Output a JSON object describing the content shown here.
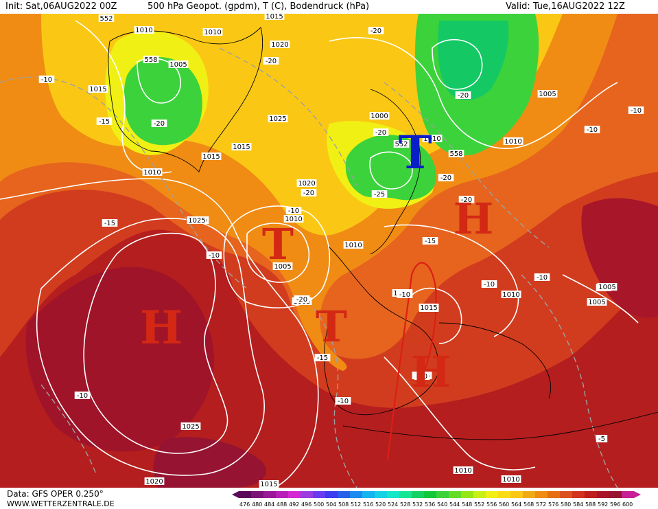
{
  "header": {
    "init": "Init: Sat,06AUG2022 00Z",
    "title": "500 hPa Geopot. (gpdm), T (C), Bodendruck (hPa)",
    "valid": "Valid: Tue,16AUG2022 12Z"
  },
  "footer": {
    "data_source": "Data: GFS OPER 0.250°",
    "website": "WWW.WETTERZENTRALE.DE"
  },
  "legend": {
    "ticks": [
      "476",
      "480",
      "484",
      "488",
      "492",
      "496",
      "500",
      "504",
      "508",
      "512",
      "516",
      "520",
      "524",
      "528",
      "532",
      "536",
      "540",
      "544",
      "548",
      "552",
      "556",
      "560",
      "564",
      "568",
      "572",
      "576",
      "580",
      "584",
      "588",
      "592",
      "596",
      "600"
    ],
    "colors": [
      "#5a0a5a",
      "#7a1278",
      "#9a1898",
      "#b81eb8",
      "#d428d4",
      "#9a3ce0",
      "#6a3cf0",
      "#3c3cf0",
      "#2860e8",
      "#1c8cf0",
      "#14b4f0",
      "#14d2e6",
      "#14e6c8",
      "#14e696",
      "#14d264",
      "#14c83c",
      "#3cd23c",
      "#64dc28",
      "#96e614",
      "#c8f014",
      "#f0f014",
      "#fadc14",
      "#fac814",
      "#f0aa14",
      "#f08c14",
      "#e66e14",
      "#dc501e",
      "#d2321e",
      "#be1e1e",
      "#aa1428",
      "#961432",
      "#c81e96"
    ]
  },
  "systems": [
    {
      "type": "T",
      "color": "#0a1ec8",
      "note": "low-scandinavia"
    },
    {
      "type": "T",
      "color": "#d22814",
      "note": "low-atlantic-north"
    },
    {
      "type": "T",
      "color": "#d22814",
      "note": "low-iberia-west"
    },
    {
      "type": "H",
      "color": "#d22814",
      "note": "high-azores"
    },
    {
      "type": "H",
      "color": "#d22814",
      "note": "high-central-europe"
    },
    {
      "type": "H",
      "color": "#d22814",
      "note": "high-mediterranean"
    }
  ],
  "contour_labels": [
    "552",
    "1010",
    "1010",
    "1015",
    "1020",
    "1005",
    "-20",
    "558",
    "-10",
    "1015",
    "-20",
    "-15",
    "-20",
    "1025",
    "1015",
    "1015",
    "1010",
    "-10",
    "1020",
    "-20",
    "1010",
    "-15",
    "1005",
    "-20",
    "1000",
    "-20",
    "552",
    "1010",
    "558",
    "1010",
    "1005",
    "-20",
    "1010",
    "-10",
    "-10",
    "-25",
    "-20",
    "-15",
    "1025",
    "1010",
    "-10",
    "1010",
    "-10",
    "1015",
    "1005",
    "-10",
    "-15",
    "1015",
    "1015",
    "-20",
    "-10",
    "-10",
    "1010",
    "1005",
    "-10",
    "-10",
    "1005",
    "1015",
    "-10",
    "-15",
    "-10",
    "-10",
    "1025",
    "1020",
    "1015",
    "1010",
    "1010",
    "-5"
  ]
}
